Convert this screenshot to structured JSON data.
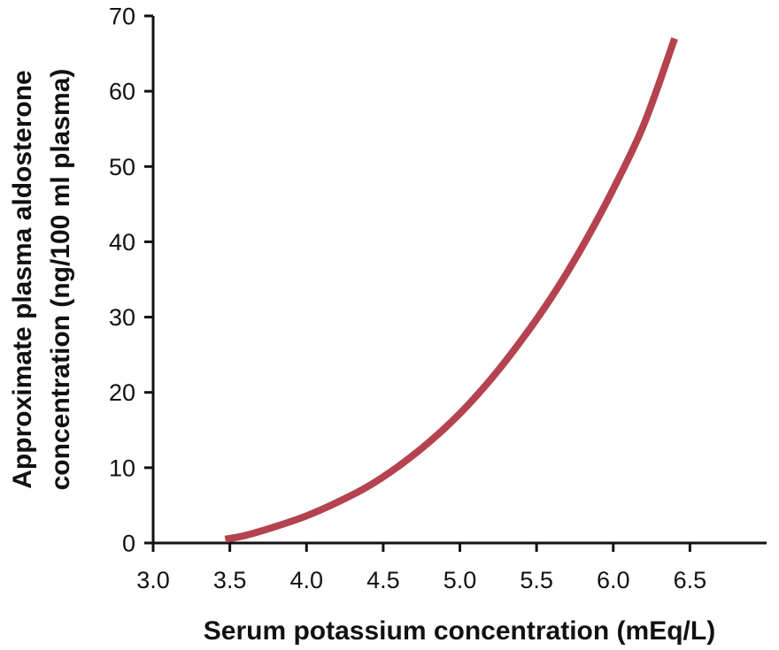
{
  "chart_data": {
    "type": "line",
    "title": "",
    "xlabel": "Serum potassium concentration (mEq/L)",
    "ylabel_lines": [
      "Approximate plasma aldosterone",
      "concentration (ng/100 ml plasma)"
    ],
    "xlim": [
      3.0,
      7.0
    ],
    "ylim": [
      0,
      70
    ],
    "x_ticks": [
      "3.0",
      "3.5",
      "4.0",
      "4.5",
      "5.0",
      "5.5",
      "6.0",
      "6.5"
    ],
    "y_ticks": [
      "0",
      "10",
      "20",
      "30",
      "40",
      "50",
      "60",
      "70"
    ],
    "grid": false,
    "legend": "none",
    "series": [
      {
        "color": "#b5424f",
        "x": [
          3.47,
          3.6,
          3.8,
          4.0,
          4.2,
          4.4,
          4.6,
          4.8,
          5.0,
          5.2,
          5.4,
          5.6,
          5.8,
          6.0,
          6.2,
          6.4
        ],
        "y": [
          0.5,
          1.0,
          2.2,
          3.6,
          5.4,
          7.5,
          10.2,
          13.4,
          17.2,
          21.7,
          26.9,
          32.7,
          39.4,
          47.0,
          55.6,
          67.0
        ]
      }
    ]
  }
}
